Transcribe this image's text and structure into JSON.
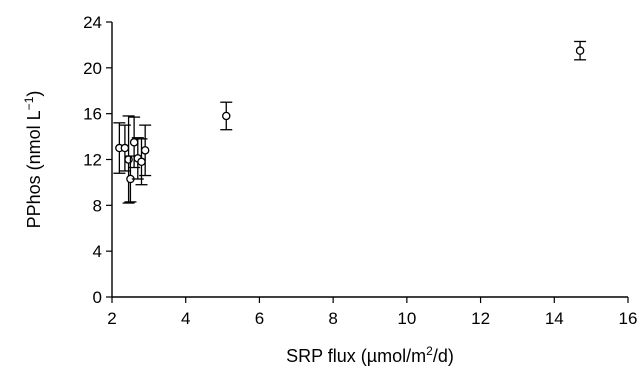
{
  "chart_data": {
    "type": "scatter",
    "xlabel": {
      "prefix": "SRP flux (µmol/m",
      "sup": "2",
      "suffix": "/d)"
    },
    "ylabel": {
      "prefix": "PPhos (nmol L",
      "sup": "−1",
      "suffix": ")"
    },
    "xlim": [
      2,
      16
    ],
    "ylim": [
      0,
      24
    ],
    "xticks": [
      2,
      4,
      6,
      8,
      10,
      12,
      14,
      16
    ],
    "yticks": [
      0,
      4,
      8,
      12,
      16,
      20,
      24
    ],
    "grid": false,
    "points": [
      {
        "x": 2.2,
        "y": 13.0,
        "err": 2.2
      },
      {
        "x": 2.35,
        "y": 13.0,
        "err": 2.0
      },
      {
        "x": 2.45,
        "y": 12.0,
        "err": 3.8
      },
      {
        "x": 2.5,
        "y": 10.3,
        "err": 2.0
      },
      {
        "x": 2.6,
        "y": 13.5,
        "err": 2.2
      },
      {
        "x": 2.7,
        "y": 12.1,
        "err": 1.8
      },
      {
        "x": 2.8,
        "y": 11.8,
        "err": 2.0
      },
      {
        "x": 2.9,
        "y": 12.8,
        "err": 2.2
      },
      {
        "x": 5.1,
        "y": 15.8,
        "err": 1.2
      },
      {
        "x": 14.7,
        "y": 21.5,
        "err": 0.8
      }
    ],
    "colors": {
      "marker_fill": "#ffffff",
      "marker_stroke": "#000000",
      "axis": "#000000"
    }
  }
}
